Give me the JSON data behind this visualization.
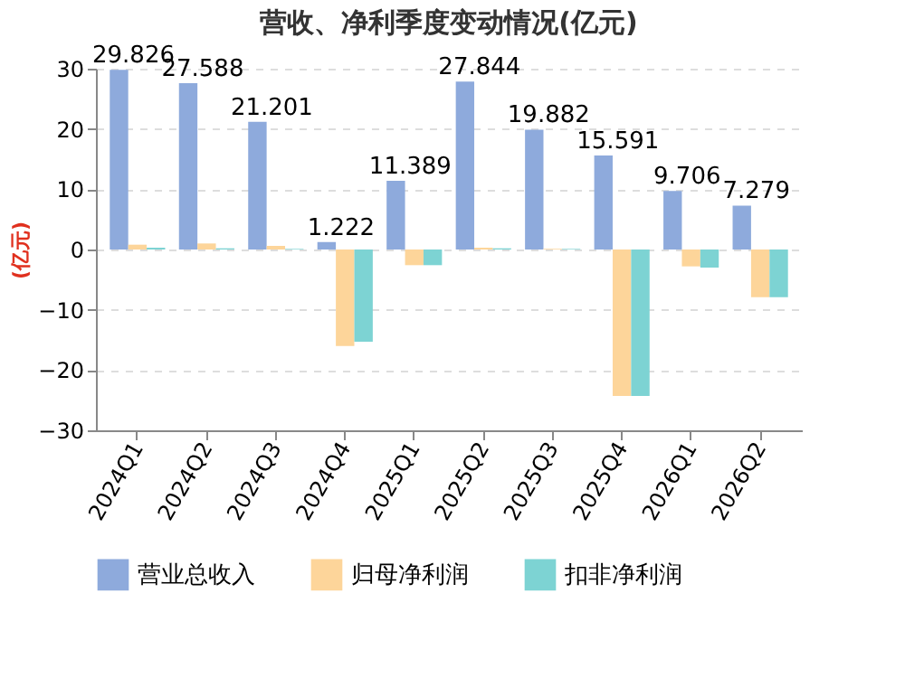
{
  "chart_data": {
    "type": "bar",
    "title": "营收、净利季度变动情况(亿元)",
    "ylabel": "(亿元)",
    "categories": [
      "2024Q1",
      "2024Q2",
      "2024Q3",
      "2024Q4",
      "2025Q1",
      "2025Q2",
      "2025Q3",
      "2025Q4",
      "2026Q1",
      "2026Q2"
    ],
    "series": [
      {
        "name": "营业总收入",
        "color": "#8eaadc",
        "values": [
          29.826,
          27.588,
          21.201,
          1.222,
          11.389,
          27.844,
          19.882,
          15.591,
          9.706,
          7.279
        ],
        "value_labels": [
          "29.826",
          "27.588",
          "21.201",
          "1.222",
          "11.389",
          "27.844",
          "19.882",
          "15.591",
          "9.706",
          "7.279"
        ]
      },
      {
        "name": "归母净利润",
        "color": "#fdd59a",
        "values": [
          0.8,
          1.0,
          0.6,
          -16,
          -2.6,
          0.3,
          0.1,
          -24.3,
          -2.8,
          -7.9
        ]
      },
      {
        "name": "扣非净利润",
        "color": "#7dd3d3",
        "values": [
          0.3,
          0.2,
          0.1,
          -15.3,
          -2.6,
          0.2,
          0.1,
          -24.3,
          -3.0,
          -7.9
        ]
      }
    ],
    "ylim": [
      -30,
      30
    ],
    "yticks": [
      -30,
      -20,
      -10,
      0,
      10,
      20,
      30
    ],
    "grid": "y",
    "legend": "bottom"
  }
}
